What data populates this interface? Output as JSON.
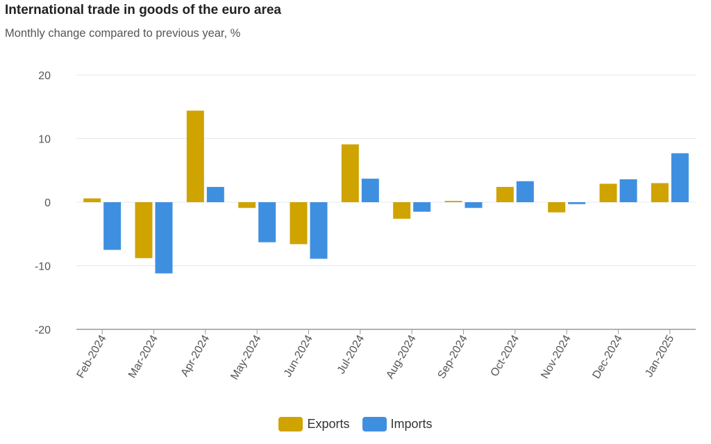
{
  "title": "International trade in goods of the euro area",
  "subtitle": "Monthly change compared to previous year, %",
  "colors": {
    "exports": "#cfa300",
    "imports": "#3f8fe0",
    "grid": "#e3e8ef",
    "axis": "#999999"
  },
  "legend": [
    {
      "label": "Exports",
      "color": "#cfa300"
    },
    {
      "label": "Imports",
      "color": "#3f8fe0"
    }
  ],
  "chart_data": {
    "type": "bar",
    "categories": [
      "Feb-2024",
      "Mar-2024",
      "Apr-2024",
      "May-2024",
      "Jun-2024",
      "Jul-2024",
      "Aug-2024",
      "Sep-2024",
      "Oct-2024",
      "Nov-2024",
      "Dec-2024",
      "Jan-2025"
    ],
    "series": [
      {
        "name": "Exports",
        "values": [
          0.6,
          -8.8,
          14.4,
          -0.9,
          -6.6,
          9.1,
          -2.6,
          0.2,
          2.4,
          -1.6,
          2.9,
          3.0
        ]
      },
      {
        "name": "Imports",
        "values": [
          -7.5,
          -11.2,
          2.4,
          -6.3,
          -8.9,
          3.7,
          -1.5,
          -0.9,
          3.3,
          -0.3,
          3.6,
          7.7
        ]
      }
    ],
    "ylim": [
      -20,
      20
    ],
    "yticks": [
      20,
      10,
      0,
      -10,
      -20
    ],
    "grid": true,
    "legend_position": "bottom"
  }
}
